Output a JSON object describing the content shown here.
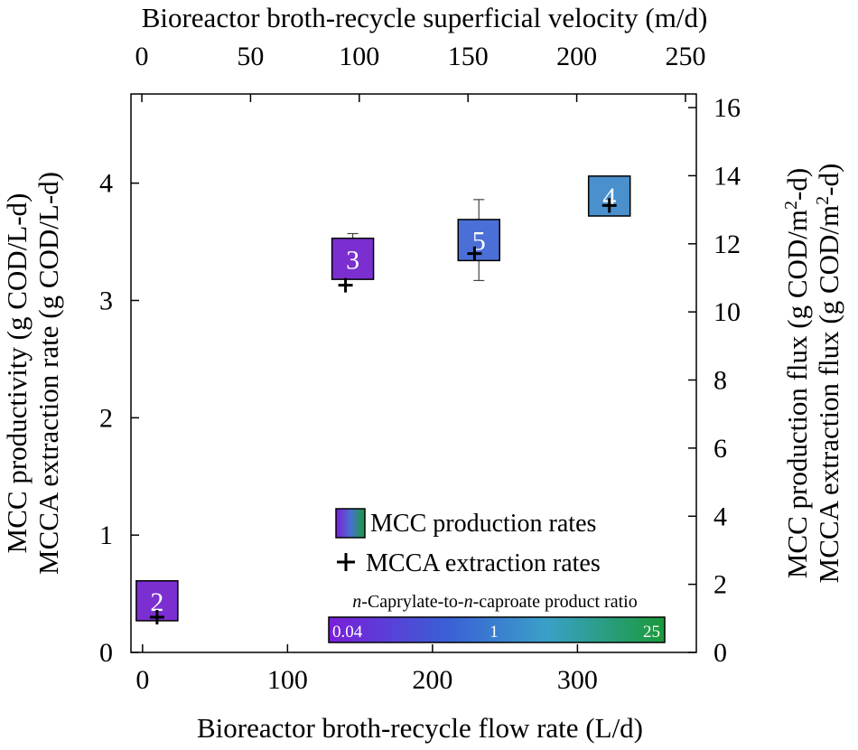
{
  "chart_data": {
    "type": "scatter",
    "title": "",
    "xlabel": "Bioreactor broth-recycle flow rate (L/d)",
    "x2label": "Bioreactor broth-recycle superficial velocity (m/d)",
    "ylabel_line1": "MCC productivity (g COD/L-d)",
    "ylabel_line2": "MCCA extraction rate (g COD/L-d)",
    "y2label_line1_pre": "MCC production flux (g COD/m",
    "y2label_line2_pre": "MCCA extraction flux (g COD/m",
    "y2label_sup": "2",
    "y2label_post": "-d)",
    "xlim": [
      -8,
      382
    ],
    "ylim": [
      0,
      4.76
    ],
    "x2lim": [
      -5.0,
      255.0
    ],
    "y2lim": [
      0,
      16.4
    ],
    "xticks": [
      0,
      100,
      200,
      300
    ],
    "yticks": [
      0,
      1,
      2,
      3,
      4
    ],
    "x2ticks": [
      0,
      50,
      100,
      150,
      200,
      250
    ],
    "y2ticks": [
      0,
      2,
      4,
      6,
      8,
      10,
      12,
      14,
      16
    ],
    "series": [
      {
        "name": "MCC production rates",
        "marker": "colored-box",
        "points": [
          {
            "x": 10,
            "y_low": 0.27,
            "y_high": 0.61,
            "label": "2",
            "ratio": 0.04,
            "color": "#7b2fd0"
          },
          {
            "x": 145,
            "y_low": 3.18,
            "y_high": 3.53,
            "label": "3",
            "ratio": 0.04,
            "color": "#7b2fd0",
            "err_high": 3.57
          },
          {
            "x": 232,
            "y_low": 3.34,
            "y_high": 3.69,
            "label": "5",
            "ratio": 0.4,
            "color": "#4a6fd6",
            "err_high": 3.86,
            "err_low": 3.17
          },
          {
            "x": 322,
            "y_low": 3.72,
            "y_high": 4.06,
            "label": "4",
            "ratio": 1,
            "color": "#4a90cc"
          }
        ]
      },
      {
        "name": "MCCA extraction rates",
        "marker": "plus",
        "points": [
          {
            "x": 10,
            "y": 0.3
          },
          {
            "x": 140,
            "y": 3.13
          },
          {
            "x": 229,
            "y": 3.4
          },
          {
            "x": 322,
            "y": 3.81
          }
        ]
      }
    ],
    "colorbar": {
      "title_italic1": "n",
      "title_mid": "-Caprylate-to-",
      "title_italic2": "n",
      "title_end": "-caproate product ratio",
      "labels": [
        "0.04",
        "1",
        "25"
      ],
      "colors": [
        "#7a1fd8",
        "#3a5fd6",
        "#3aa0c8",
        "#1a9a3a"
      ]
    },
    "legend_position": "bottom-right"
  }
}
